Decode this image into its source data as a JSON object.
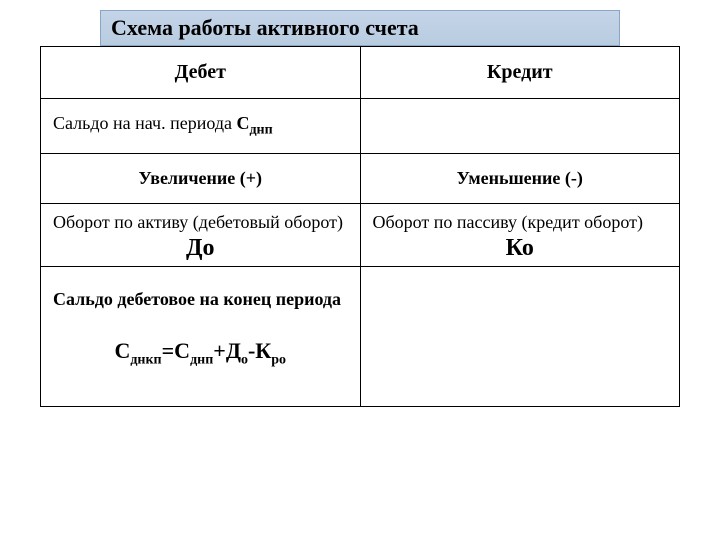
{
  "title": "Схема работы активного счета",
  "headers": {
    "debit": "Дебет",
    "credit": "Кредит"
  },
  "row_saldo_start": {
    "text_prefix": "Сальдо на нач. периода ",
    "symbol_main": "С",
    "symbol_sub": "днп"
  },
  "row_change": {
    "increase": "Увеличение (+)",
    "decrease": "Уменьшение (-)"
  },
  "row_turnover": {
    "debit_text": "Оборот по активу (дебетовый оборот)",
    "debit_symbol": "До",
    "credit_text": "Оборот по пассиву (кредит оборот)",
    "credit_symbol": "Ко"
  },
  "row_saldo_end": {
    "label": "Сальдо дебетовое на конец периода",
    "formula_parts": {
      "p1": "С",
      "s1": "днкп",
      "eq": "=",
      "p2": "С",
      "s2": "днп",
      "plus": "+",
      "p3": "Д",
      "s3": "о",
      "minus": "-",
      "p4": "К",
      "s4": "ро"
    }
  },
  "colors": {
    "title_bg_top": "#c5d4e8",
    "title_bg_bottom": "#b8cce0",
    "title_border": "#8ba5c4",
    "table_border": "#000000",
    "background": "#ffffff",
    "text": "#000000"
  },
  "fonts": {
    "family": "Times New Roman, serif",
    "title_size": 22,
    "header_size": 20,
    "body_size": 18,
    "symbol_size": 24,
    "formula_size": 22,
    "sub_size": 14
  }
}
